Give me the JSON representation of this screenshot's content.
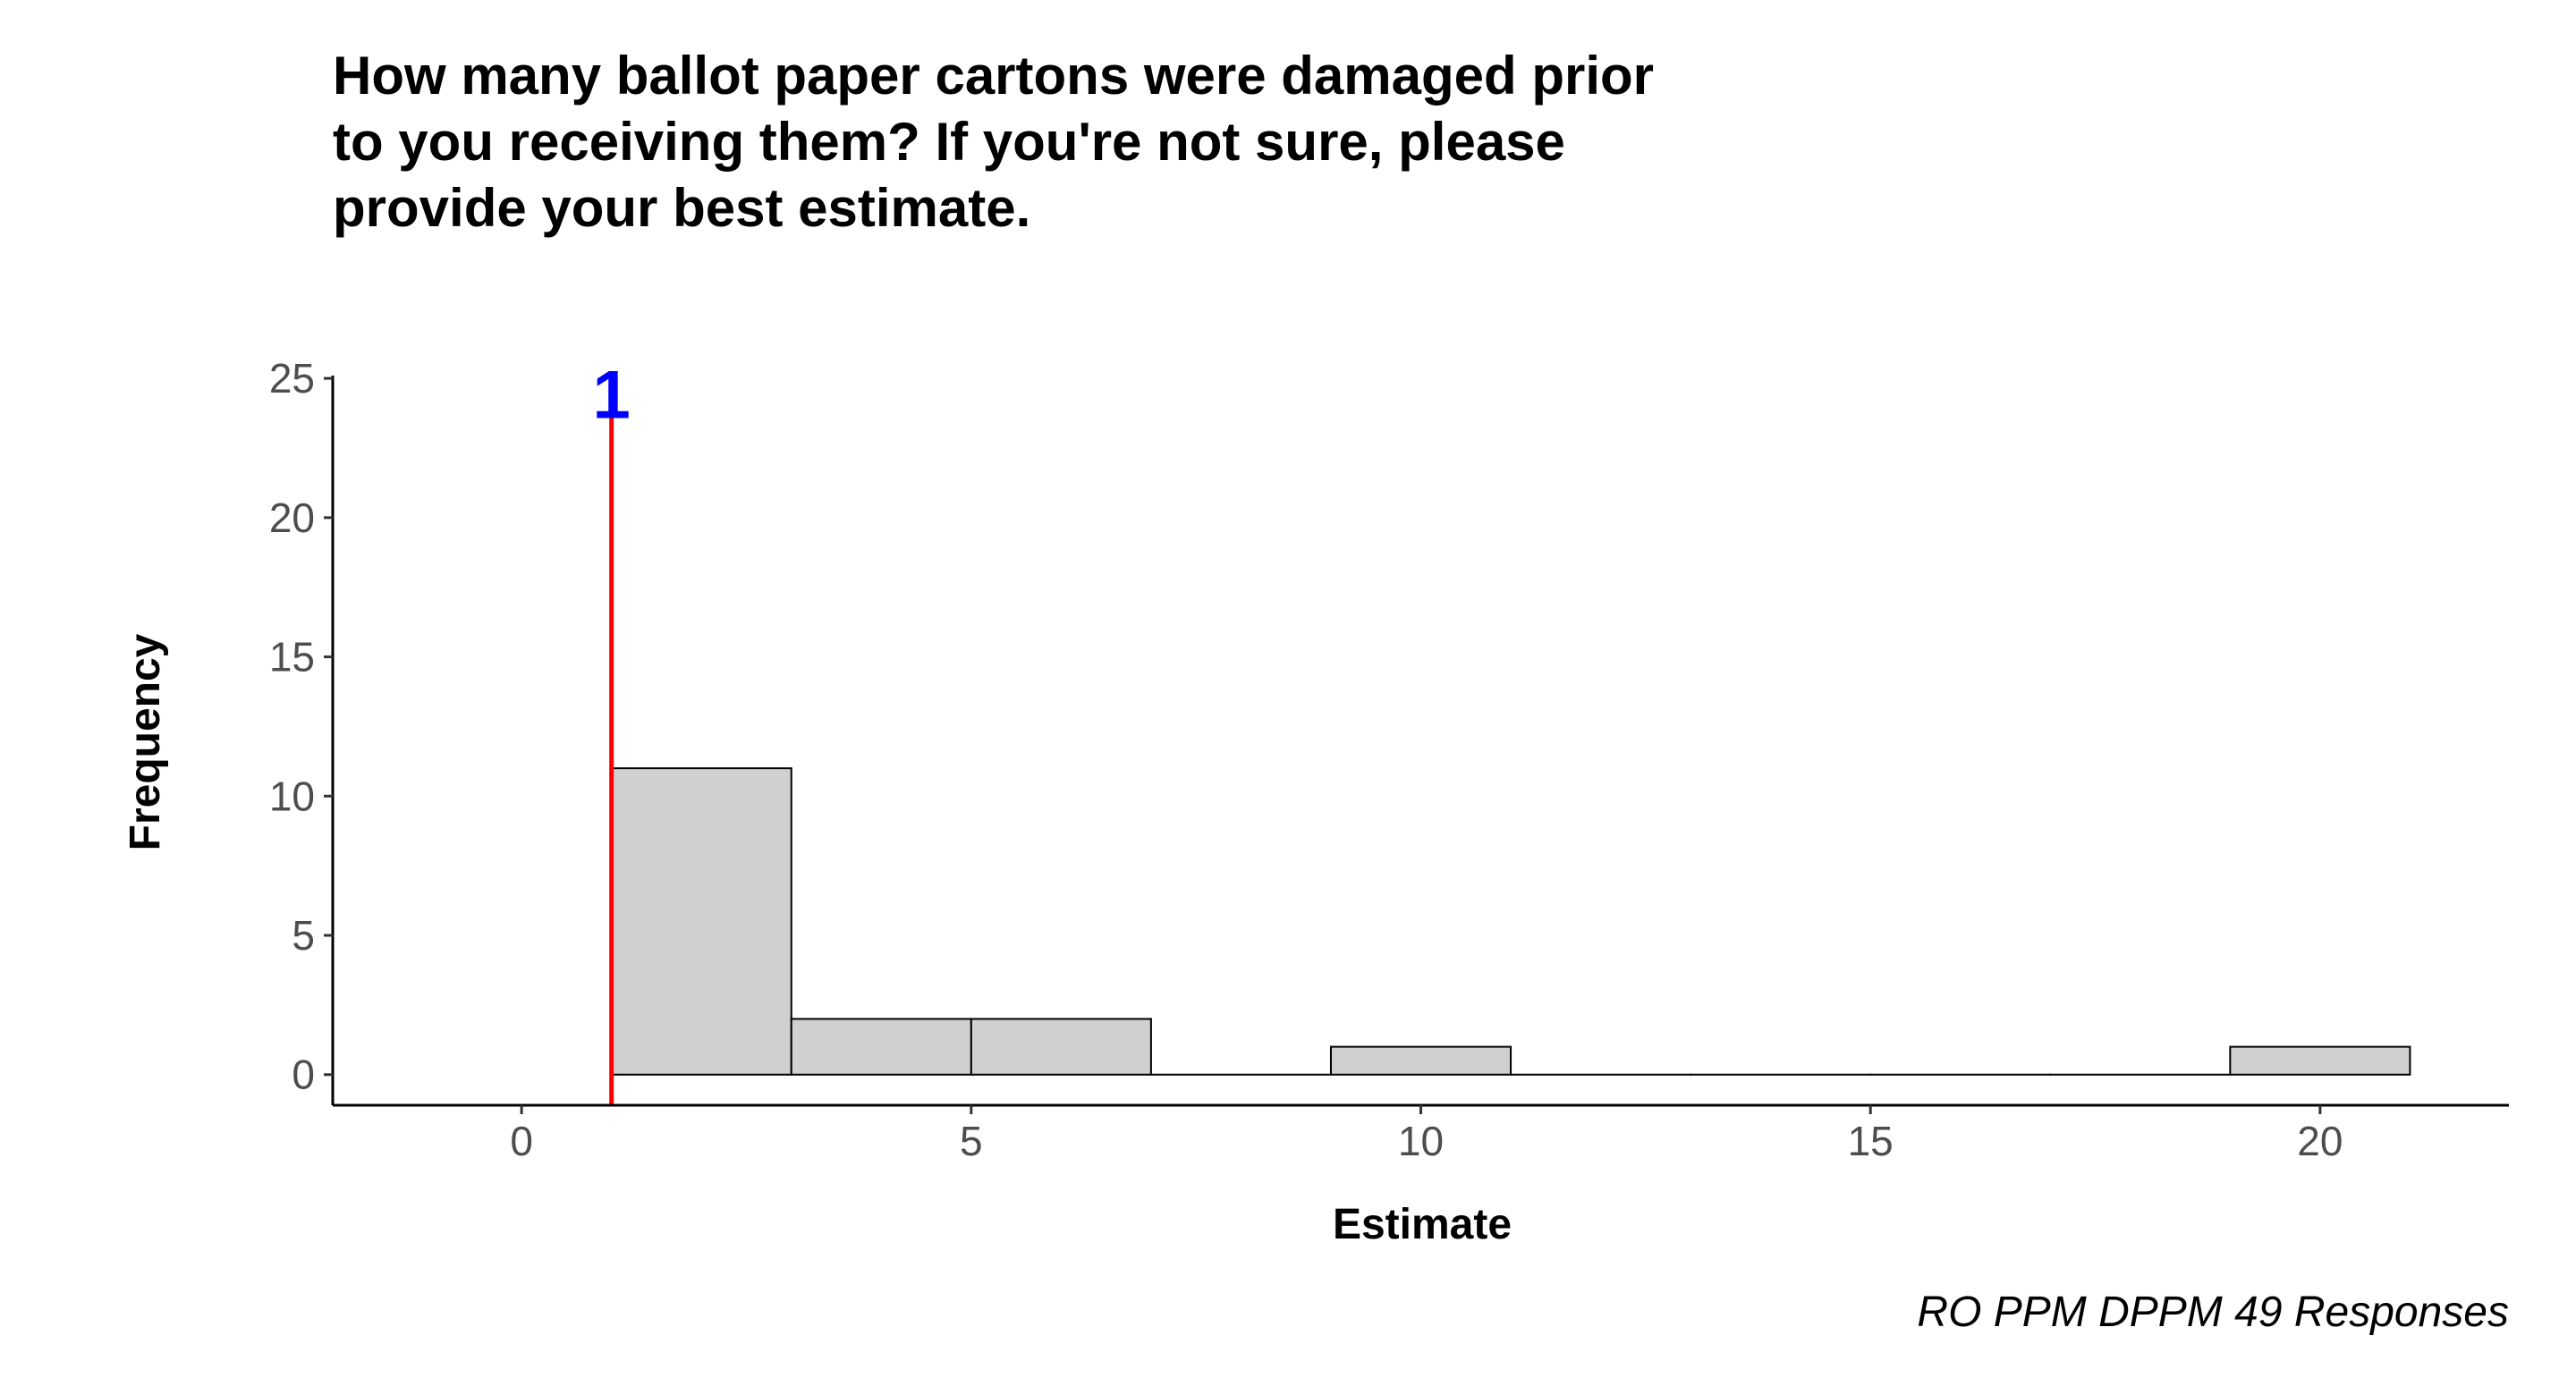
{
  "chart_data": {
    "type": "bar",
    "title": "How many ballot paper cartons were damaged prior to you receiving them? If you're not sure, please provide your best estimate.",
    "title_lines": [
      "How many ballot paper cartons were damaged prior",
      "to you receiving them? If you're not sure, please",
      "provide your best estimate."
    ],
    "xlabel": "Estimate",
    "ylabel": "Frequency",
    "caption": "RO PPM DPPM 49 Responses",
    "xlim": [
      -2.1,
      22.1
    ],
    "ylim": [
      -1.1,
      25.1
    ],
    "xticks": [
      0,
      5,
      10,
      15,
      20
    ],
    "yticks": [
      0,
      5,
      10,
      15,
      20,
      25
    ],
    "grid": false,
    "bins": [
      {
        "x0": 1,
        "x1": 3,
        "count": 11
      },
      {
        "x0": 3,
        "x1": 5,
        "count": 2
      },
      {
        "x0": 5,
        "x1": 7,
        "count": 2
      },
      {
        "x0": 7,
        "x1": 9,
        "count": 0
      },
      {
        "x0": 9,
        "x1": 11,
        "count": 1
      },
      {
        "x0": 11,
        "x1": 13,
        "count": 0
      },
      {
        "x0": 13,
        "x1": 15,
        "count": 0
      },
      {
        "x0": 15,
        "x1": 17,
        "count": 0
      },
      {
        "x0": 17,
        "x1": 19,
        "count": 0
      },
      {
        "x0": 19,
        "x1": 21,
        "count": 1
      }
    ],
    "reference_line": {
      "x": 1,
      "label": "1",
      "color": "#ff0000",
      "label_color": "#0000ff"
    },
    "bar_fill": "#d0d0d0",
    "bar_stroke": "#000000"
  }
}
